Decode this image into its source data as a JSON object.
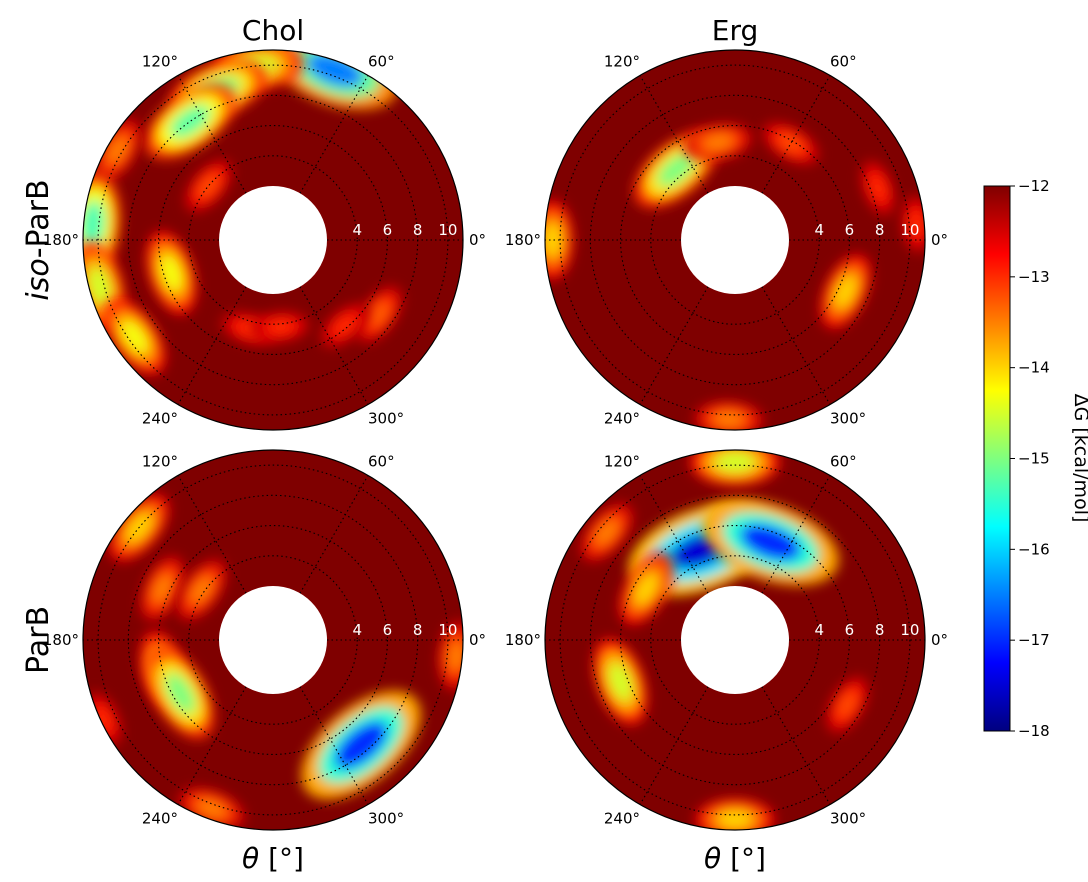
{
  "chart_data": {
    "type": "heatmap",
    "subtype": "polar",
    "columns": [
      "Chol",
      "Erg"
    ],
    "rows": [
      {
        "prefix_italic": "iso",
        "rest": "-ParB"
      },
      {
        "prefix_italic": "",
        "rest": "ParB"
      }
    ],
    "theta_ticks": [
      {
        "deg": 0,
        "label": "0°"
      },
      {
        "deg": 60,
        "label": "60°"
      },
      {
        "deg": 120,
        "label": "120°"
      },
      {
        "deg": 180,
        "label": "180°"
      },
      {
        "deg": 240,
        "label": "240°"
      },
      {
        "deg": 300,
        "label": "300°"
      }
    ],
    "r_ticks": [
      {
        "r": 4,
        "label": "4"
      },
      {
        "r": 6,
        "label": "6"
      },
      {
        "r": 8,
        "label": "8"
      },
      {
        "r": 10,
        "label": "10"
      }
    ],
    "r_range": [
      2,
      11
    ],
    "xlabel": {
      "symbol": "θ",
      "unit": " [°]"
    },
    "colorbar": {
      "label": "ΔG [kcal/mol]",
      "range": [
        -18,
        -12
      ],
      "ticks": [
        {
          "v": -12,
          "label": "−12"
        },
        {
          "v": -13,
          "label": "−13"
        },
        {
          "v": -14,
          "label": "−14"
        },
        {
          "v": -15,
          "label": "−15"
        },
        {
          "v": -16,
          "label": "−16"
        },
        {
          "v": -17,
          "label": "−17"
        },
        {
          "v": -18,
          "label": "−18"
        }
      ],
      "colormap": "jet",
      "stops": [
        "#00007f",
        "#0000ff",
        "#007fff",
        "#00ffff",
        "#7fff7f",
        "#ffff00",
        "#ff7f00",
        "#ff0000",
        "#7f0000"
      ]
    },
    "background_value": -12,
    "panels": [
      {
        "row": "iso-ParB",
        "col": "Chol",
        "features": [
          {
            "theta": 70,
            "r": 10.4,
            "value": -16.5
          },
          {
            "theta": 95,
            "r": 10.0,
            "value": -14.5
          },
          {
            "theta": 110,
            "r": 9.0,
            "value": -15.0
          },
          {
            "theta": 125,
            "r": 8.0,
            "value": -15.2
          },
          {
            "theta": 150,
            "r": 10.3,
            "value": -13.5
          },
          {
            "theta": 175,
            "r": 10.4,
            "value": -15.3
          },
          {
            "theta": 195,
            "r": 10.3,
            "value": -14.5
          },
          {
            "theta": 215,
            "r": 9.6,
            "value": -14.3
          },
          {
            "theta": 198,
            "r": 5.5,
            "value": -14.3
          },
          {
            "theta": 140,
            "r": 4.0,
            "value": -13.2
          },
          {
            "theta": 255,
            "r": 4.5,
            "value": -13.0
          },
          {
            "theta": 275,
            "r": 4.2,
            "value": -13.0
          },
          {
            "theta": 325,
            "r": 7.0,
            "value": -13.3
          },
          {
            "theta": 310,
            "r": 5.8,
            "value": -13.0
          }
        ]
      },
      {
        "row": "iso-ParB",
        "col": "Erg",
        "features": [
          {
            "theta": 130,
            "r": 4.5,
            "value": -15.0
          },
          {
            "theta": 100,
            "r": 5.0,
            "value": -13.5
          },
          {
            "theta": 60,
            "r": 5.8,
            "value": -13.2
          },
          {
            "theta": 20,
            "r": 8.5,
            "value": -13.0
          },
          {
            "theta": 335,
            "r": 6.5,
            "value": -14.0
          },
          {
            "theta": 180,
            "r": 10.5,
            "value": -14.0
          },
          {
            "theta": 268,
            "r": 10.3,
            "value": -13.5
          },
          {
            "theta": 5,
            "r": 10.5,
            "value": -13.0
          }
        ]
      },
      {
        "row": "ParB",
        "col": "Chol",
        "features": [
          {
            "theta": 140,
            "r": 10.0,
            "value": -14.0
          },
          {
            "theta": 155,
            "r": 6.5,
            "value": -13.5
          },
          {
            "theta": 145,
            "r": 4.2,
            "value": -13.5
          },
          {
            "theta": 195,
            "r": 6.0,
            "value": -14.0
          },
          {
            "theta": 210,
            "r": 5.5,
            "value": -15.0
          },
          {
            "theta": 310,
            "r": 7.5,
            "value": -17.0
          },
          {
            "theta": 250,
            "r": 10.3,
            "value": -13.5
          },
          {
            "theta": 355,
            "r": 10.6,
            "value": -13.5
          },
          {
            "theta": 205,
            "r": 10.8,
            "value": -13.0
          }
        ]
      },
      {
        "row": "ParB",
        "col": "Erg",
        "features": [
          {
            "theta": 110,
            "r": 4.8,
            "value": -17.5
          },
          {
            "theta": 70,
            "r": 5.3,
            "value": -17.0
          },
          {
            "theta": 90,
            "r": 10.2,
            "value": -14.5
          },
          {
            "theta": 140,
            "r": 9.5,
            "value": -13.5
          },
          {
            "theta": 150,
            "r": 5.2,
            "value": -14.0
          },
          {
            "theta": 200,
            "r": 6.5,
            "value": -14.5
          },
          {
            "theta": 270,
            "r": 10.3,
            "value": -14.0
          },
          {
            "theta": 330,
            "r": 7.0,
            "value": -13.2
          }
        ]
      }
    ]
  }
}
